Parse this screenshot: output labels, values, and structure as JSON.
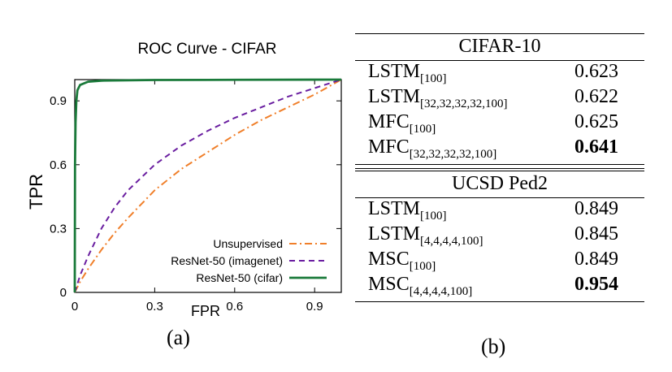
{
  "chart_data": {
    "type": "line",
    "title": "ROC Curve - CIFAR",
    "xlabel": "FPR",
    "ylabel": "TPR",
    "xlim": [
      0,
      1
    ],
    "ylim": [
      0,
      1
    ],
    "xticks": [
      "0",
      "0.3",
      "0.6",
      "0.9"
    ],
    "xtick_values": [
      0,
      0.3,
      0.6,
      0.9
    ],
    "yticks": [
      "0",
      "0.3",
      "0.6",
      "0.9"
    ],
    "ytick_values": [
      0,
      0.3,
      0.6,
      0.9
    ],
    "grid": false,
    "legend_position": "bottom-right",
    "series": [
      {
        "name": "Unsupervised",
        "color": "#f07f2a",
        "style": "dash-dot",
        "x": [
          0,
          0.02,
          0.05,
          0.1,
          0.15,
          0.2,
          0.3,
          0.4,
          0.5,
          0.6,
          0.7,
          0.8,
          0.9,
          1.0
        ],
        "y": [
          0,
          0.05,
          0.11,
          0.2,
          0.28,
          0.35,
          0.48,
          0.58,
          0.66,
          0.74,
          0.81,
          0.87,
          0.93,
          1.0
        ]
      },
      {
        "name": "ResNet-50 (imagenet)",
        "color": "#6a1ea0",
        "style": "dashed",
        "x": [
          0,
          0.02,
          0.05,
          0.1,
          0.15,
          0.2,
          0.3,
          0.4,
          0.5,
          0.6,
          0.7,
          0.8,
          0.9,
          1.0
        ],
        "y": [
          0,
          0.08,
          0.17,
          0.3,
          0.4,
          0.48,
          0.6,
          0.69,
          0.76,
          0.82,
          0.87,
          0.92,
          0.96,
          1.0
        ]
      },
      {
        "name": "ResNet-50 (cifar)",
        "color": "#1a7a3a",
        "style": "solid",
        "x": [
          0,
          0.001,
          0.003,
          0.006,
          0.01,
          0.02,
          0.05,
          0.1,
          0.3,
          0.6,
          1.0
        ],
        "y": [
          0,
          0.6,
          0.8,
          0.9,
          0.95,
          0.975,
          0.99,
          0.995,
          0.998,
          0.999,
          1.0
        ]
      }
    ]
  },
  "captions": {
    "a": "(a)",
    "b": "(b)"
  },
  "table": {
    "sections": [
      {
        "title": "CIFAR-10",
        "rows": [
          {
            "model": "LSTM",
            "sub": "[100]",
            "value": "0.623",
            "best": false
          },
          {
            "model": "LSTM",
            "sub": "[32,32,32,32,100]",
            "value": "0.622",
            "best": false
          },
          {
            "model": "MFC",
            "sub": "[100]",
            "value": "0.625",
            "best": false
          },
          {
            "model": "MFC",
            "sub": "[32,32,32,32,100]",
            "value": "0.641",
            "best": true
          }
        ]
      },
      {
        "title": "UCSD Ped2",
        "rows": [
          {
            "model": "LSTM",
            "sub": "[100]",
            "value": "0.849",
            "best": false
          },
          {
            "model": "LSTM",
            "sub": "[4,4,4,4,100]",
            "value": "0.845",
            "best": false
          },
          {
            "model": "MSC",
            "sub": "[100]",
            "value": "0.849",
            "best": false
          },
          {
            "model": "MSC",
            "sub": "[4,4,4,4,100]",
            "value": "0.954",
            "best": true
          }
        ]
      }
    ]
  }
}
